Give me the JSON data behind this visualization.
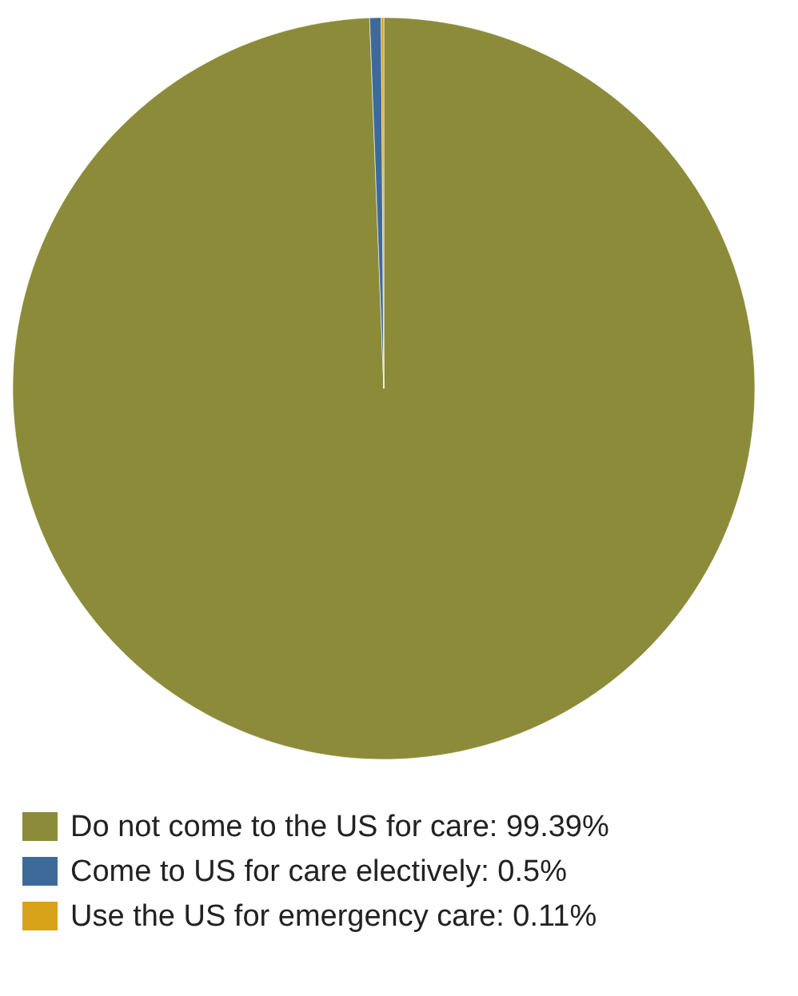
{
  "chart_data": {
    "type": "pie",
    "categories": [
      "Do not come to the US for care: 99.39%",
      "Come to US for care electively: 0.5%",
      "Use the US for emergency care: 0.11%"
    ],
    "values": [
      99.39,
      0.5,
      0.11
    ],
    "colors": [
      "#8b8b3a",
      "#3e6a9a",
      "#d9a21b"
    ],
    "legend": "bottom"
  }
}
